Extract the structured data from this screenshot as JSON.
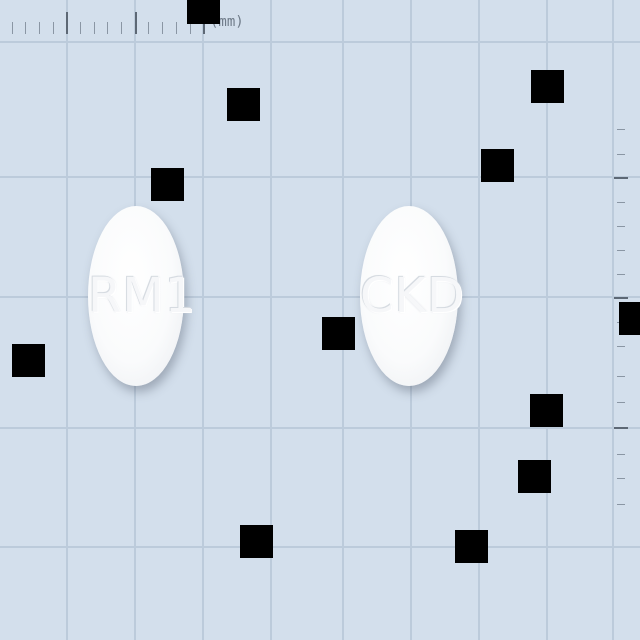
{
  "ruler_top": {
    "unit_label": "(mm)"
  },
  "tablets": [
    {
      "imprint": "RM1"
    },
    {
      "imprint": "CKD"
    }
  ],
  "colors": {
    "background": "#d3dfec",
    "grid": "#bccbdb",
    "tablet": "#ffffff",
    "occluder": "#000000"
  }
}
